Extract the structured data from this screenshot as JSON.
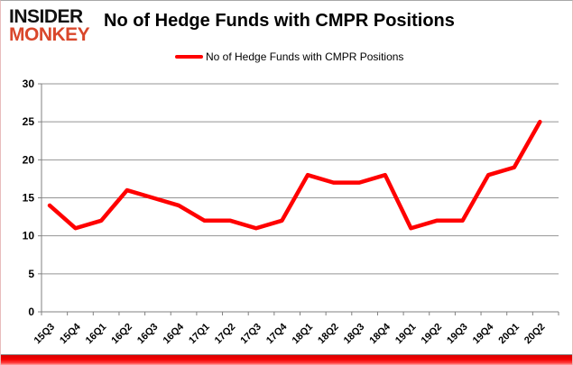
{
  "logo": {
    "line1": "INSIDER",
    "line2": "MONKEY"
  },
  "header": {
    "title": "No of Hedge Funds with CMPR Positions"
  },
  "legend": {
    "label": "No of Hedge Funds with CMPR Positions"
  },
  "colors": {
    "line": "#ff0000",
    "logo_accent": "#d9472b",
    "grid": "#949494",
    "axis": "#808080",
    "text": "#000000",
    "bottom_bar": "#ee0000"
  },
  "chart_data": {
    "type": "line",
    "title": "No of Hedge Funds with CMPR Positions",
    "categories": [
      "15Q3",
      "15Q4",
      "16Q1",
      "16Q2",
      "16Q3",
      "16Q4",
      "17Q1",
      "17Q2",
      "17Q3",
      "17Q4",
      "18Q1",
      "18Q2",
      "18Q3",
      "18Q4",
      "19Q1",
      "19Q2",
      "19Q3",
      "19Q4",
      "20Q1",
      "20Q2"
    ],
    "series": [
      {
        "name": "No of Hedge Funds with CMPR Positions",
        "values": [
          14,
          11,
          12,
          16,
          15,
          14,
          12,
          12,
          11,
          12,
          18,
          17,
          17,
          18,
          11,
          12,
          12,
          18,
          19,
          25
        ]
      }
    ],
    "xlabel": "",
    "ylabel": "",
    "ylim": [
      0,
      30
    ],
    "yticks": [
      0,
      5,
      10,
      15,
      20,
      25,
      30
    ],
    "grid": true,
    "legend_position": "top"
  }
}
